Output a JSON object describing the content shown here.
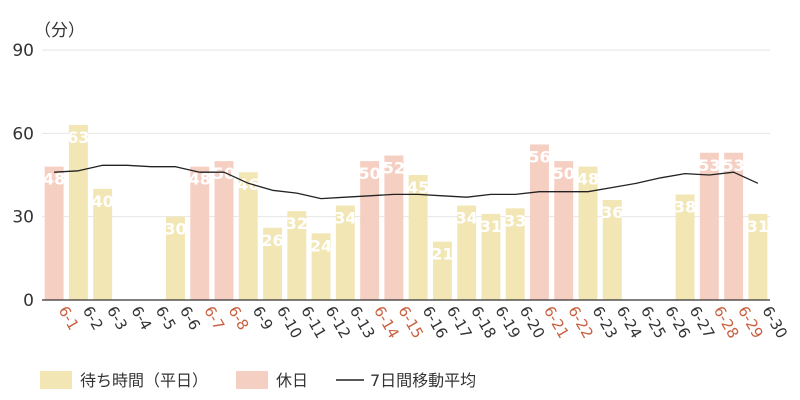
{
  "chart_data": {
    "type": "bar",
    "unit_label": "（分）",
    "ylim": [
      0,
      90
    ],
    "yticks": [
      0,
      30,
      60,
      90
    ],
    "grid": true,
    "categories": [
      "6-1",
      "6-2",
      "6-3",
      "6-4",
      "6-5",
      "6-6",
      "6-7",
      "6-8",
      "6-9",
      "6-10",
      "6-11",
      "6-12",
      "6-13",
      "6-14",
      "6-15",
      "6-16",
      "6-17",
      "6-18",
      "6-19",
      "6-20",
      "6-21",
      "6-22",
      "6-23",
      "6-24",
      "6-25",
      "6-26",
      "6-27",
      "6-28",
      "6-29",
      "6-30"
    ],
    "values": [
      48,
      63,
      40,
      0,
      0,
      30,
      48,
      50,
      46,
      26,
      32,
      24,
      34,
      50,
      52,
      45,
      21,
      34,
      31,
      33,
      56,
      50,
      48,
      36,
      0,
      0,
      38,
      53,
      53,
      31
    ],
    "holiday": [
      true,
      false,
      false,
      false,
      false,
      false,
      true,
      true,
      false,
      false,
      false,
      false,
      false,
      true,
      true,
      false,
      false,
      false,
      false,
      false,
      true,
      true,
      false,
      false,
      false,
      false,
      false,
      true,
      true,
      false
    ],
    "moving_average": [
      46,
      46.5,
      48.5,
      48.5,
      48,
      48,
      46,
      46,
      42,
      39.5,
      38.5,
      36.5,
      37,
      37.5,
      38,
      38,
      37.5,
      37,
      38,
      38,
      39,
      39,
      39,
      40.5,
      42,
      44,
      45.5,
      45,
      46,
      42
    ],
    "legend": [
      {
        "label": "待ち時間（平日）",
        "kind": "bar",
        "color": "#f2e6b5"
      },
      {
        "label": "休日",
        "kind": "bar",
        "color": "#f6cfc3"
      },
      {
        "label": "7日間移動平均",
        "kind": "line",
        "color": "#222222"
      }
    ],
    "colors": {
      "weekday_bar": "#f2e6b5",
      "holiday_bar": "#f6cfc3",
      "weekday_label": "#333333",
      "holiday_label": "#c8603f",
      "line": "#222222",
      "grid": "#e6e6e6",
      "axis": "#333333"
    }
  }
}
